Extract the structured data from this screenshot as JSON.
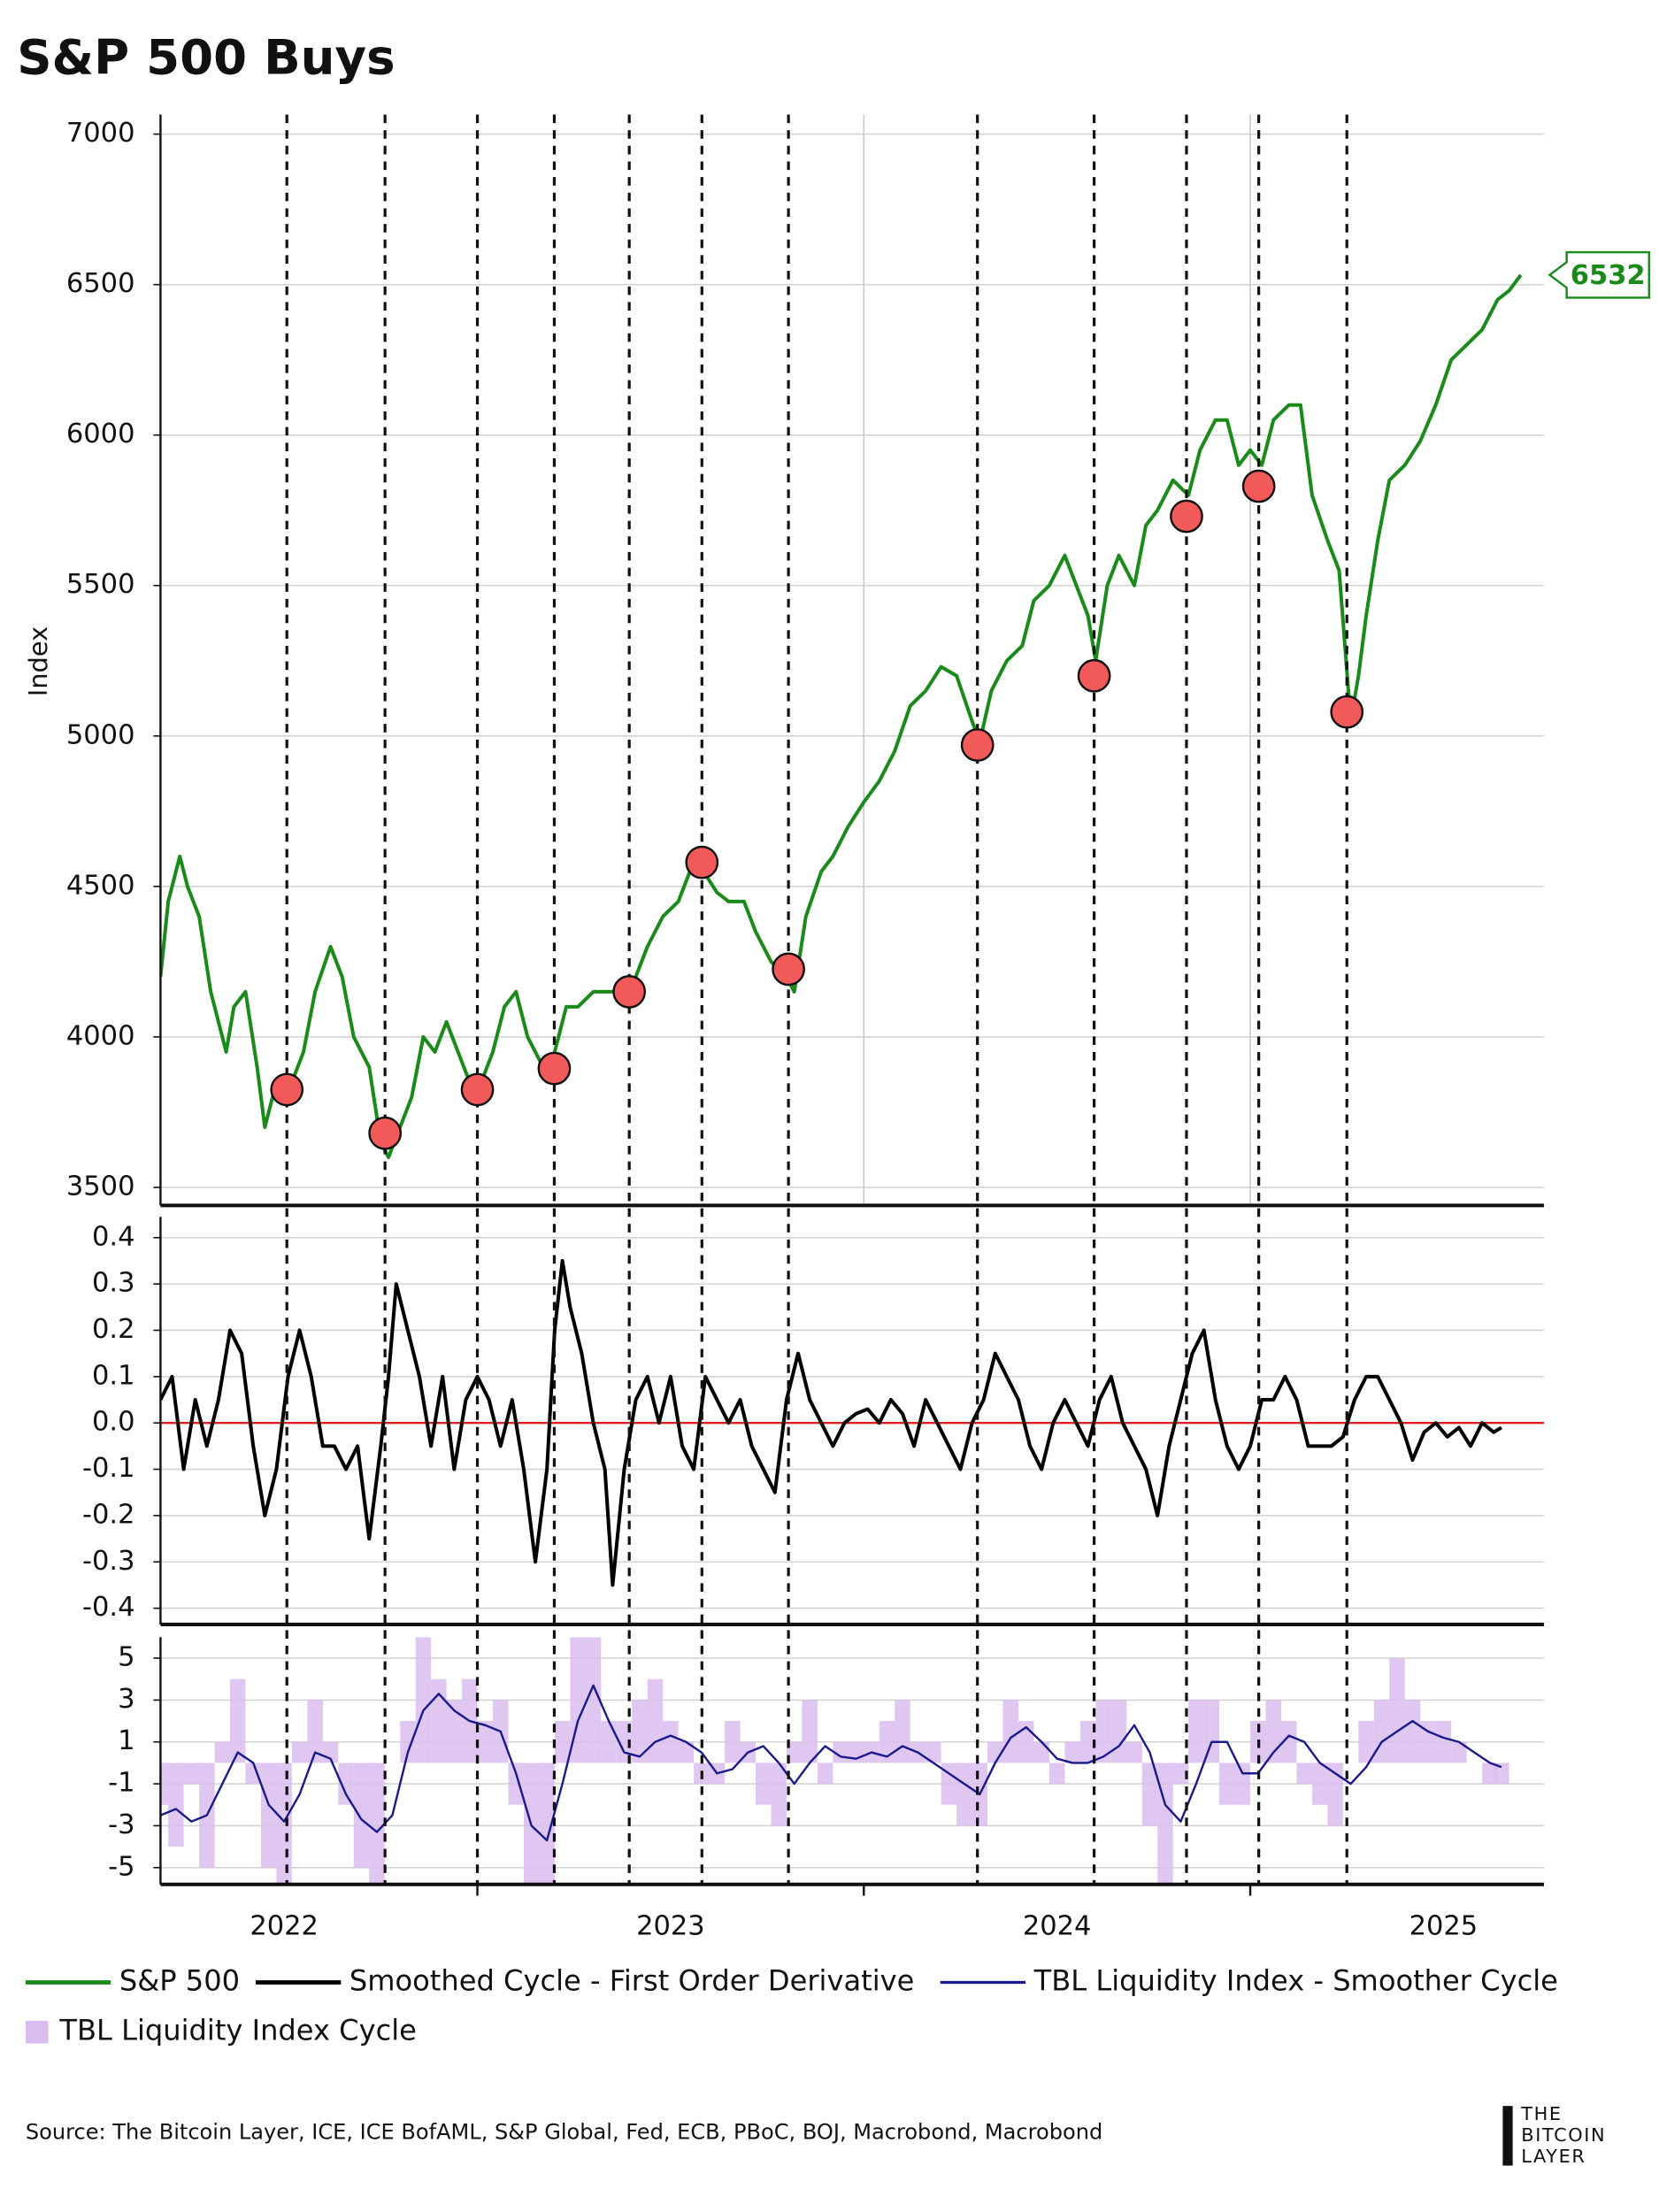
{
  "chart_data": [
    {
      "type": "line",
      "title": "S&P 500 Buys",
      "ylabel": "Index",
      "xlim": [
        2022.18,
        2025.76
      ],
      "ylim": [
        3440,
        7065
      ],
      "yticks": [
        3500,
        4000,
        4500,
        5000,
        5500,
        6000,
        6500,
        7000
      ],
      "grid": true,
      "xgrid": [
        2024,
        2025
      ],
      "x": [
        2022.18,
        2022.2,
        2022.23,
        2022.25,
        2022.28,
        2022.31,
        2022.35,
        2022.37,
        2022.4,
        2022.43,
        2022.45,
        2022.48,
        2022.52,
        2022.55,
        2022.58,
        2022.62,
        2022.65,
        2022.68,
        2022.72,
        2022.75,
        2022.77,
        2022.8,
        2022.83,
        2022.86,
        2022.89,
        2022.92,
        2022.95,
        2022.98,
        2023.01,
        2023.04,
        2023.07,
        2023.1,
        2023.13,
        2023.17,
        2023.2,
        2023.23,
        2023.26,
        2023.3,
        2023.34,
        2023.38,
        2023.41,
        2023.44,
        2023.48,
        2023.52,
        2023.55,
        2023.58,
        2023.62,
        2023.65,
        2023.69,
        2023.72,
        2023.76,
        2023.8,
        2023.82,
        2023.85,
        2023.89,
        2023.92,
        2023.96,
        2024.0,
        2024.04,
        2024.08,
        2024.12,
        2024.16,
        2024.2,
        2024.24,
        2024.28,
        2024.3,
        2024.33,
        2024.37,
        2024.41,
        2024.44,
        2024.48,
        2024.52,
        2024.55,
        2024.58,
        2024.6,
        2024.63,
        2024.66,
        2024.7,
        2024.73,
        2024.76,
        2024.8,
        2024.84,
        2024.87,
        2024.91,
        2024.94,
        2024.97,
        2025.0,
        2025.03,
        2025.06,
        2025.1,
        2025.13,
        2025.16,
        2025.2,
        2025.23,
        2025.26,
        2025.28,
        2025.3,
        2025.33,
        2025.36,
        2025.4,
        2025.44,
        2025.48,
        2025.52,
        2025.56,
        2025.6,
        2025.64,
        2025.67,
        2025.7
      ],
      "series": [
        {
          "name": "S&P 500",
          "color": "#1a8a1a",
          "type": "line",
          "values": [
            4200,
            4450,
            4600,
            4500,
            4400,
            4150,
            3950,
            4100,
            4150,
            3900,
            3700,
            3850,
            3850,
            3950,
            4150,
            4300,
            4200,
            4000,
            3900,
            3650,
            3600,
            3700,
            3800,
            4000,
            3950,
            4050,
            3950,
            3850,
            3850,
            3950,
            4100,
            4150,
            4000,
            3900,
            3950,
            4100,
            4100,
            4150,
            4150,
            4150,
            4200,
            4300,
            4400,
            4450,
            4550,
            4560,
            4480,
            4450,
            4450,
            4350,
            4250,
            4200,
            4150,
            4400,
            4550,
            4600,
            4700,
            4780,
            4850,
            4950,
            5100,
            5150,
            5230,
            5200,
            5050,
            4980,
            5150,
            5250,
            5300,
            5450,
            5500,
            5600,
            5500,
            5400,
            5250,
            5500,
            5600,
            5500,
            5700,
            5750,
            5850,
            5800,
            5950,
            6050,
            6050,
            5900,
            5950,
            5900,
            6050,
            6100,
            6100,
            5800,
            5650,
            5550,
            5050,
            5200,
            5400,
            5650,
            5850,
            5900,
            5980,
            6100,
            6250,
            6300,
            6350,
            6450,
            6480,
            6532
          ]
        }
      ],
      "end_label": 6532,
      "buy_signals": {
        "color": "#f25a5a",
        "x": [
          2022.507,
          2022.761,
          2023.0,
          2023.199,
          2023.393,
          2023.581,
          2023.805,
          2024.294,
          2024.596,
          2024.835,
          2025.022,
          2025.25
        ],
        "values": [
          3825,
          3680,
          3825,
          3895,
          4150,
          4580,
          4225,
          4970,
          5200,
          5730,
          5830,
          5080
        ]
      }
    },
    {
      "type": "line",
      "xlim": [
        2022.18,
        2025.76
      ],
      "ylim": [
        -0.435,
        0.445
      ],
      "yticks": [
        -0.4,
        -0.3,
        -0.2,
        -0.1,
        {
          "value": 0,
          "label": "0.0"
        },
        0.1,
        0.2,
        0.3,
        0.4
      ],
      "grid": true,
      "hline": {
        "value": 0,
        "color": "#e02020"
      },
      "x": [
        2022.18,
        2022.21,
        2022.24,
        2022.27,
        2022.3,
        2022.33,
        2022.36,
        2022.39,
        2022.42,
        2022.45,
        2022.48,
        2022.51,
        2022.54,
        2022.57,
        2022.6,
        2022.63,
        2022.66,
        2022.69,
        2022.72,
        2022.75,
        2022.77,
        2022.79,
        2022.82,
        2022.85,
        2022.88,
        2022.91,
        2022.94,
        2022.97,
        2023.0,
        2023.03,
        2023.06,
        2023.09,
        2023.12,
        2023.15,
        2023.18,
        2023.2,
        2023.22,
        2023.24,
        2023.27,
        2023.3,
        2023.33,
        2023.35,
        2023.38,
        2023.41,
        2023.44,
        2023.47,
        2023.5,
        2023.53,
        2023.56,
        2023.59,
        2023.62,
        2023.65,
        2023.68,
        2023.71,
        2023.74,
        2023.77,
        2023.8,
        2023.83,
        2023.86,
        2023.89,
        2023.92,
        2023.95,
        2023.98,
        2024.01,
        2024.04,
        2024.07,
        2024.1,
        2024.13,
        2024.16,
        2024.19,
        2024.22,
        2024.25,
        2024.28,
        2024.31,
        2024.34,
        2024.37,
        2024.4,
        2024.43,
        2024.46,
        2024.49,
        2024.52,
        2024.55,
        2024.58,
        2024.61,
        2024.64,
        2024.67,
        2024.7,
        2024.73,
        2024.76,
        2024.79,
        2024.82,
        2024.85,
        2024.88,
        2024.91,
        2024.94,
        2024.97,
        2025.0,
        2025.03,
        2025.06,
        2025.09,
        2025.12,
        2025.15,
        2025.18,
        2025.21,
        2025.24,
        2025.27,
        2025.3,
        2025.33,
        2025.36,
        2025.39,
        2025.42,
        2025.45,
        2025.48,
        2025.51,
        2025.54,
        2025.57,
        2025.6,
        2025.63,
        2025.65
      ],
      "series": [
        {
          "name": "Smoothed Cycle - First Order Derivative",
          "color": "#000000",
          "type": "line",
          "values": [
            0.05,
            0.1,
            -0.1,
            0.05,
            -0.05,
            0.05,
            0.2,
            0.15,
            -0.05,
            -0.2,
            -0.1,
            0.1,
            0.2,
            0.1,
            -0.05,
            -0.05,
            -0.1,
            -0.05,
            -0.25,
            -0.05,
            0.1,
            0.3,
            0.2,
            0.1,
            -0.05,
            0.1,
            -0.1,
            0.05,
            0.1,
            0.05,
            -0.05,
            0.05,
            -0.1,
            -0.3,
            -0.1,
            0.2,
            0.35,
            0.25,
            0.15,
            0.0,
            -0.1,
            -0.35,
            -0.1,
            0.05,
            0.1,
            0.0,
            0.1,
            -0.05,
            -0.1,
            0.1,
            0.05,
            0.0,
            0.05,
            -0.05,
            -0.1,
            -0.15,
            0.05,
            0.15,
            0.05,
            0.0,
            -0.05,
            0.0,
            0.02,
            0.03,
            0.0,
            0.05,
            0.02,
            -0.05,
            0.05,
            0.0,
            -0.05,
            -0.1,
            0.0,
            0.05,
            0.15,
            0.1,
            0.05,
            -0.05,
            -0.1,
            0.0,
            0.05,
            0.0,
            -0.05,
            0.05,
            0.1,
            0.0,
            -0.05,
            -0.1,
            -0.2,
            -0.05,
            0.05,
            0.15,
            0.2,
            0.05,
            -0.05,
            -0.1,
            -0.05,
            0.05,
            0.05,
            0.1,
            0.05,
            -0.05,
            -0.05,
            -0.05,
            -0.03,
            0.05,
            0.1,
            0.1,
            0.05,
            0.0,
            -0.08,
            -0.02,
            0.0,
            -0.03,
            -0.01,
            -0.05,
            0.0,
            -0.02,
            -0.01
          ]
        }
      ]
    },
    {
      "type": "line",
      "xlim": [
        2022.18,
        2025.76
      ],
      "ylim": [
        -5.8,
        6.0
      ],
      "yticks": [
        -5,
        -3,
        -1,
        1,
        3,
        5
      ],
      "grid": true,
      "xticks": [
        {
          "value": 2022.5,
          "label": "2022"
        },
        {
          "value": 2023.5,
          "label": "2023"
        },
        {
          "value": 2024.5,
          "label": "2024"
        },
        {
          "value": 2025.5,
          "label": "2025"
        }
      ],
      "xticks_minor": [
        2023,
        2024,
        2025
      ],
      "x": [
        2022.18,
        2022.22,
        2022.26,
        2022.3,
        2022.34,
        2022.38,
        2022.42,
        2022.46,
        2022.5,
        2022.54,
        2022.58,
        2022.62,
        2022.66,
        2022.7,
        2022.74,
        2022.78,
        2022.82,
        2022.86,
        2022.9,
        2022.94,
        2022.98,
        2023.02,
        2023.06,
        2023.1,
        2023.14,
        2023.18,
        2023.22,
        2023.26,
        2023.3,
        2023.34,
        2023.38,
        2023.42,
        2023.46,
        2023.5,
        2023.54,
        2023.58,
        2023.62,
        2023.66,
        2023.7,
        2023.74,
        2023.78,
        2023.82,
        2023.86,
        2023.9,
        2023.94,
        2023.98,
        2024.02,
        2024.06,
        2024.1,
        2024.14,
        2024.18,
        2024.22,
        2024.26,
        2024.3,
        2024.34,
        2024.38,
        2024.42,
        2024.46,
        2024.5,
        2024.54,
        2024.58,
        2024.62,
        2024.66,
        2024.7,
        2024.74,
        2024.78,
        2024.82,
        2024.86,
        2024.9,
        2024.94,
        2024.98,
        2025.02,
        2025.06,
        2025.1,
        2025.14,
        2025.18,
        2025.22,
        2025.26,
        2025.3,
        2025.34,
        2025.38,
        2025.42,
        2025.46,
        2025.5,
        2025.54,
        2025.58,
        2025.62,
        2025.65
      ],
      "series": [
        {
          "name": "TBL Liquidity Index Cycle",
          "color": "#d9bdf0",
          "type": "bar",
          "values": [
            -2,
            -4,
            -1,
            -5,
            1,
            4,
            -1,
            -5,
            -6,
            1,
            3,
            1,
            -2,
            -5,
            -6,
            0,
            2,
            6,
            4,
            3,
            4,
            2,
            3,
            -2,
            -6,
            -6,
            2,
            6,
            6,
            2,
            2,
            3,
            4,
            2,
            1,
            -1,
            -1,
            2,
            1,
            -2,
            -3,
            1,
            3,
            -1,
            1,
            1,
            1,
            2,
            3,
            1,
            1,
            -2,
            -3,
            -3,
            1,
            3,
            2,
            1,
            -1,
            1,
            2,
            3,
            3,
            1,
            -3,
            -6,
            -1,
            3,
            3,
            -2,
            -2,
            2,
            3,
            2,
            -1,
            -2,
            -3,
            0,
            2,
            3,
            5,
            3,
            2,
            2,
            1,
            0,
            -1,
            -1
          ]
        },
        {
          "name": "TBL Liquidity Index - Smoother Cycle",
          "color": "#1a1a8c",
          "type": "line",
          "values": [
            -2.5,
            -2.2,
            -2.8,
            -2.5,
            -1.0,
            0.5,
            0,
            -2.0,
            -2.8,
            -1.5,
            0.5,
            0.2,
            -1.5,
            -2.7,
            -3.3,
            -2.5,
            0.5,
            2.5,
            3.3,
            2.5,
            2.0,
            1.8,
            1.5,
            -0.5,
            -3.0,
            -3.7,
            -1.0,
            2.0,
            3.7,
            2.0,
            0.5,
            0.3,
            1.0,
            1.3,
            1.0,
            0.5,
            -0.5,
            -0.3,
            0.5,
            0.8,
            0.0,
            -1.0,
            0.0,
            0.8,
            0.3,
            0.2,
            0.5,
            0.3,
            0.8,
            0.5,
            0.0,
            -0.5,
            -1.0,
            -1.5,
            0.0,
            1.2,
            1.7,
            1.0,
            0.2,
            0.0,
            0.0,
            0.3,
            0.8,
            1.8,
            0.5,
            -2.0,
            -2.8,
            -1.0,
            1.0,
            1.0,
            -0.5,
            -0.5,
            0.5,
            1.3,
            1.0,
            0.0,
            -0.5,
            -1.0,
            -0.2,
            1.0,
            1.5,
            2.0,
            1.5,
            1.2,
            1.0,
            0.5,
            0.0,
            -0.2
          ]
        }
      ]
    }
  ],
  "source": "Source: The Bitcoin Layer, ICE, ICE BofAML, S&P Global, Fed, ECB, PBoC, BOJ, Macrobond, Macrobond",
  "logo": [
    "THE",
    "BITCOIN",
    "LAYER"
  ]
}
